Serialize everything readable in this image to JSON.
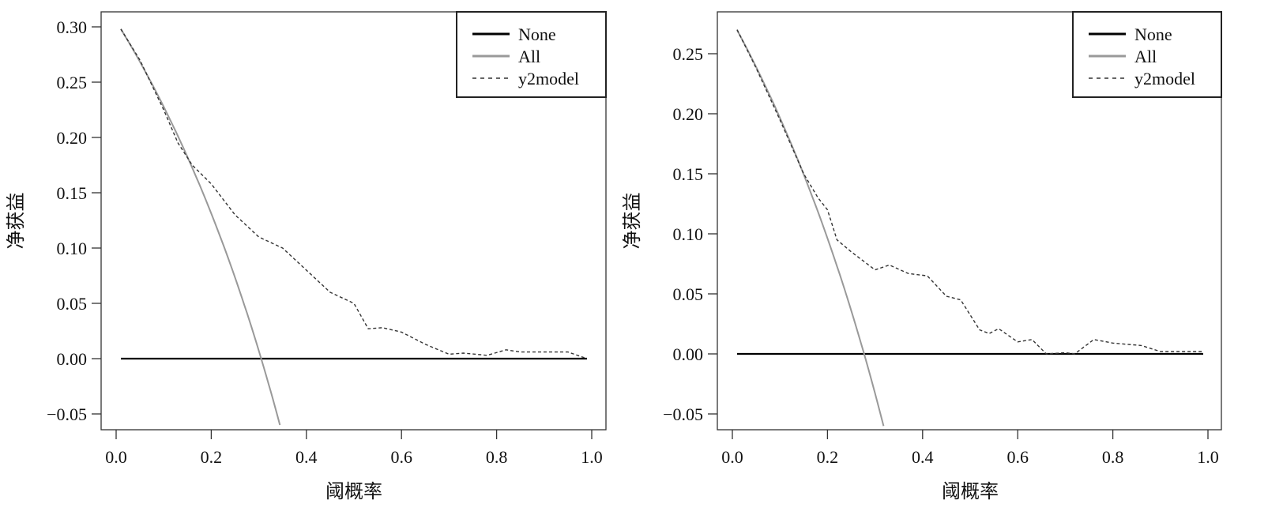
{
  "chart_data": [
    {
      "type": "line",
      "title": "",
      "xlabel": "阈概率",
      "ylabel": "净获益",
      "xlim": [
        0,
        1
      ],
      "ylim": [
        -0.06,
        0.31
      ],
      "xticks": [
        "0.0",
        "0.2",
        "0.4",
        "0.6",
        "0.8",
        "1.0"
      ],
      "xtick_values": [
        0,
        0.2,
        0.4,
        0.6,
        0.8,
        1.0
      ],
      "yticks": [
        "−0.05",
        "0.00",
        "0.05",
        "0.10",
        "0.15",
        "0.20",
        "0.25",
        "0.30"
      ],
      "ytick_values": [
        -0.05,
        0,
        0.05,
        0.1,
        0.15,
        0.2,
        0.25,
        0.3
      ],
      "legend_position": "top-right",
      "prevalence": 0.305,
      "series": [
        {
          "name": "None",
          "style": "solid",
          "color": "#000000",
          "x": [
            0.01,
            0.99
          ],
          "y": [
            0,
            0
          ]
        },
        {
          "name": "All",
          "style": "solid",
          "color": "#999999",
          "formula": "prevalence - (1-prevalence)*t/(1-t)"
        },
        {
          "name": "y2model",
          "style": "dashed",
          "color": "#333333",
          "x": [
            0.01,
            0.05,
            0.1,
            0.13,
            0.16,
            0.2,
            0.25,
            0.3,
            0.35,
            0.4,
            0.45,
            0.5,
            0.53,
            0.56,
            0.6,
            0.65,
            0.7,
            0.73,
            0.78,
            0.82,
            0.85,
            0.95,
            0.99
          ],
          "y": [
            0.298,
            0.27,
            0.225,
            0.195,
            0.175,
            0.158,
            0.13,
            0.11,
            0.1,
            0.08,
            0.06,
            0.05,
            0.027,
            0.028,
            0.024,
            0.013,
            0.004,
            0.005,
            0.003,
            0.008,
            0.006,
            0.006,
            0.0
          ]
        }
      ]
    },
    {
      "type": "line",
      "title": "",
      "xlabel": "阈概率",
      "ylabel": "净获益",
      "xlim": [
        0,
        1
      ],
      "ylim": [
        -0.06,
        0.285
      ],
      "xticks": [
        "0.0",
        "0.2",
        "0.4",
        "0.6",
        "0.8",
        "1.0"
      ],
      "xtick_values": [
        0,
        0.2,
        0.4,
        0.6,
        0.8,
        1.0
      ],
      "yticks": [
        "−0.05",
        "0.00",
        "0.05",
        "0.10",
        "0.15",
        "0.20",
        "0.25"
      ],
      "ytick_values": [
        -0.05,
        0,
        0.05,
        0.1,
        0.15,
        0.2,
        0.25
      ],
      "legend_position": "top-right",
      "prevalence": 0.277,
      "series": [
        {
          "name": "None",
          "style": "solid",
          "color": "#000000",
          "x": [
            0.01,
            0.99
          ],
          "y": [
            0,
            0
          ]
        },
        {
          "name": "All",
          "style": "solid",
          "color": "#999999",
          "formula": "prevalence - (1-prevalence)*t/(1-t)"
        },
        {
          "name": "y2model",
          "style": "dashed",
          "color": "#333333",
          "x": [
            0.01,
            0.05,
            0.1,
            0.15,
            0.18,
            0.2,
            0.22,
            0.25,
            0.3,
            0.33,
            0.37,
            0.41,
            0.45,
            0.48,
            0.52,
            0.54,
            0.56,
            0.6,
            0.63,
            0.66,
            0.7,
            0.72,
            0.76,
            0.8,
            0.86,
            0.9,
            0.99
          ],
          "y": [
            0.27,
            0.238,
            0.195,
            0.15,
            0.13,
            0.12,
            0.095,
            0.085,
            0.07,
            0.074,
            0.067,
            0.065,
            0.048,
            0.045,
            0.02,
            0.017,
            0.021,
            0.01,
            0.012,
            0.0,
            0.001,
            0.0,
            0.012,
            0.009,
            0.007,
            0.002,
            0.002
          ]
        }
      ]
    }
  ]
}
